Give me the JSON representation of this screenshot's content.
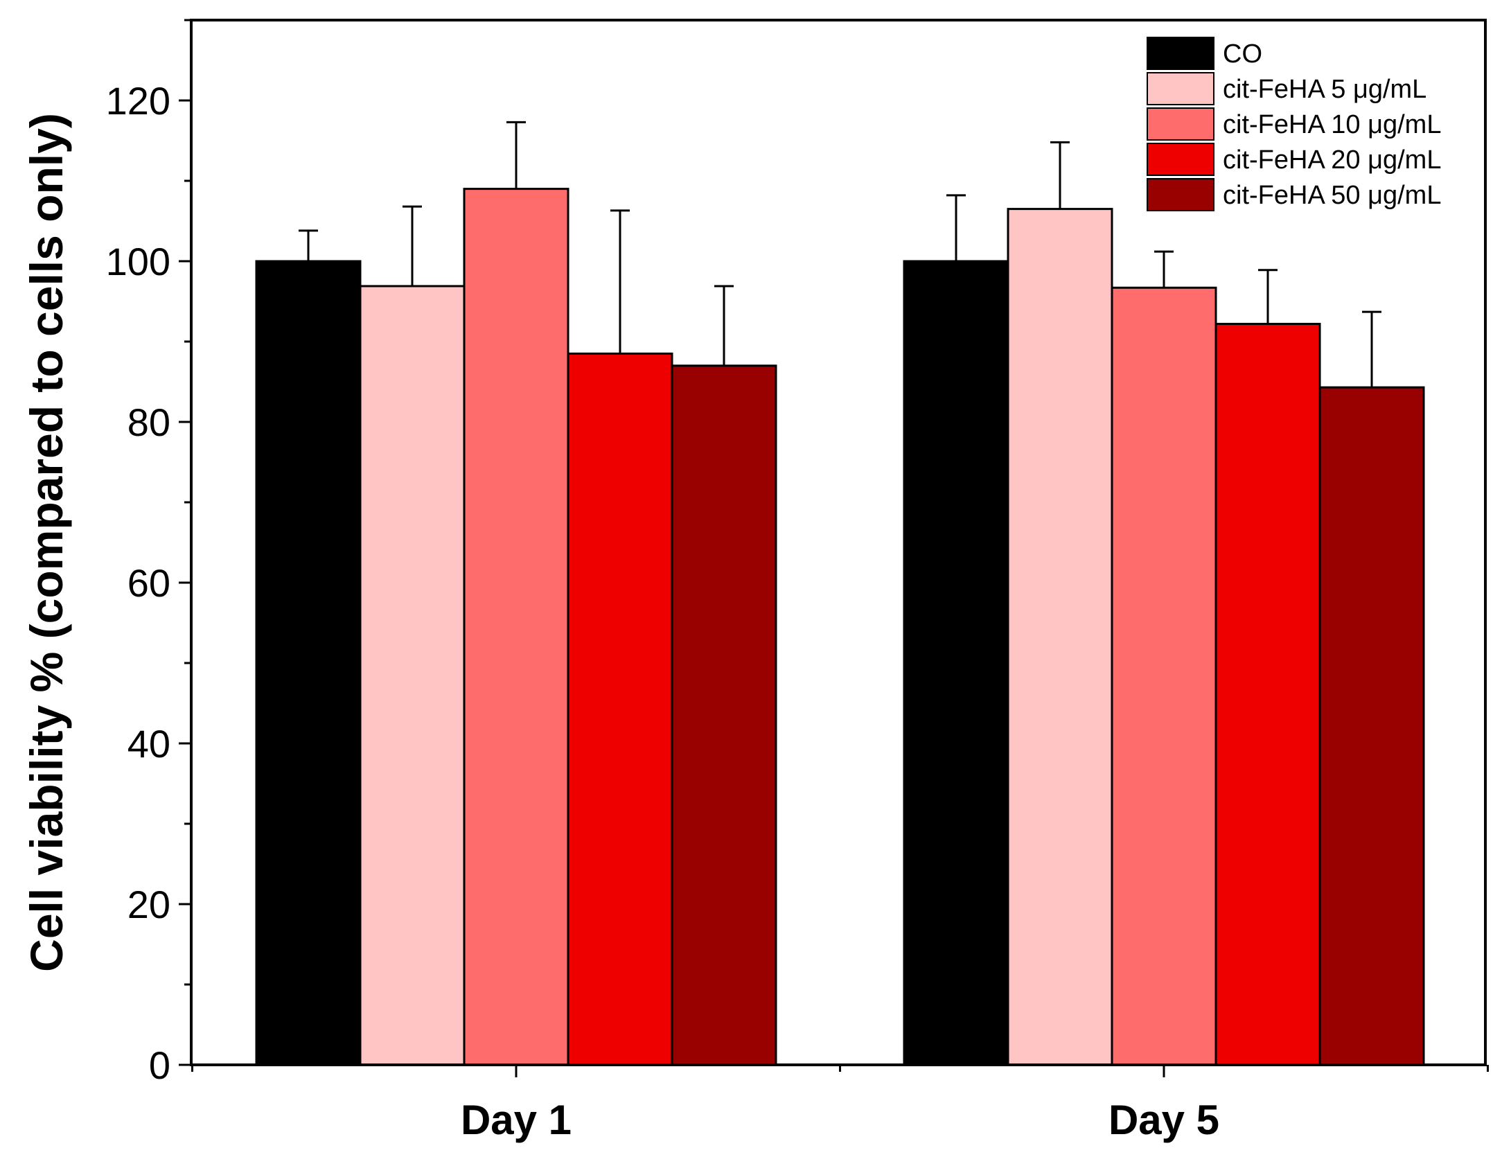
{
  "chart_data": {
    "type": "bar",
    "title": "",
    "xlabel": "",
    "ylabel": "Cell viability % (compared to cells only)",
    "ylim": [
      0,
      130
    ],
    "yticks": [
      0,
      20,
      40,
      60,
      80,
      100,
      120
    ],
    "grid": false,
    "legend_position": "top-right",
    "categories": [
      "Day 1",
      "Day 5"
    ],
    "series": [
      {
        "name": "CO",
        "color": "#000000",
        "values": [
          100,
          100
        ],
        "errors": [
          3.8,
          8.2
        ]
      },
      {
        "name": "cit-FeHA 5 μg/mL",
        "color": "#FFC4C4",
        "values": [
          96.9,
          106.5
        ],
        "errors": [
          9.9,
          8.3
        ]
      },
      {
        "name": "cit-FeHA 10 μg/mL",
        "color": "#FF6C6C",
        "values": [
          109,
          96.7
        ],
        "errors": [
          8.3,
          4.5
        ]
      },
      {
        "name": "cit-FeHA 20 μg/mL",
        "color": "#EE0000",
        "values": [
          88.5,
          92.2
        ],
        "errors": [
          17.8,
          6.7
        ]
      },
      {
        "name": "cit-FeHA 50 μg/mL",
        "color": "#990000",
        "values": [
          87,
          84.3
        ],
        "errors": [
          9.9,
          9.4
        ]
      }
    ]
  }
}
